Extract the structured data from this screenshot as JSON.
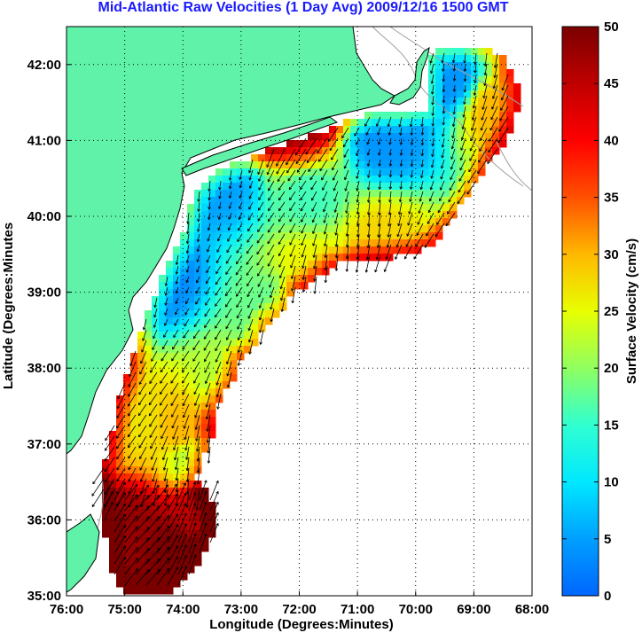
{
  "chart_data": {
    "type": "heatmap",
    "title": "Mid-Atlantic Raw Velocities (1 Day Avg) 2009/12/16 1500 GMT",
    "xlabel": "Longitude (Degrees:Minutes)",
    "ylabel": "Latitude (Degrees:Minutes",
    "xlim": [
      -76,
      -68
    ],
    "ylim": [
      35,
      42.5
    ],
    "x_ticks": [
      -76,
      -75,
      -74,
      -73,
      -72,
      -71,
      -70,
      -69,
      -68
    ],
    "x_tick_labels": [
      "76:00",
      "75:00",
      "74:00",
      "73:00",
      "72:00",
      "71:00",
      "70:00",
      "69:00",
      "68:00"
    ],
    "y_ticks": [
      35,
      36,
      37,
      38,
      39,
      40,
      41,
      42
    ],
    "y_tick_labels": [
      "35:00",
      "36:00",
      "37:00",
      "38:00",
      "39:00",
      "40:00",
      "41:00",
      "42:00"
    ],
    "grid": true,
    "colorbar": {
      "label": "Surface Velocity (cm/s)",
      "range": [
        0,
        50
      ],
      "ticks": [
        0,
        5,
        10,
        15,
        20,
        25,
        30,
        35,
        40,
        45,
        50
      ],
      "tick_labels": [
        "0",
        "5",
        "10",
        "15",
        "20",
        "25",
        "30",
        "35",
        "40",
        "45",
        "50"
      ]
    },
    "colors": {
      "land": "#5ff2a8",
      "coastline": "#000000",
      "bathymetry": "#a0a0a0",
      "vector": "#000000",
      "title": "#1a1aff"
    },
    "velocity_hotspots": [
      {
        "lon": -74.2,
        "lat": 35.6,
        "speed": 50
      },
      {
        "lon": -74.9,
        "lat": 35.9,
        "speed": 48
      },
      {
        "lon": -73.7,
        "lat": 36.1,
        "speed": 45
      },
      {
        "lon": -74.0,
        "lat": 37.2,
        "speed": 30
      },
      {
        "lon": -74.8,
        "lat": 37.3,
        "speed": 27
      },
      {
        "lon": -74.4,
        "lat": 39.2,
        "speed": 3
      },
      {
        "lon": -73.4,
        "lat": 40.4,
        "speed": 5
      },
      {
        "lon": -70.5,
        "lat": 41.0,
        "speed": 4
      },
      {
        "lon": -69.5,
        "lat": 41.8,
        "speed": 4
      },
      {
        "lon": -71.8,
        "lat": 40.3,
        "speed": 16
      },
      {
        "lon": -72.5,
        "lat": 38.8,
        "speed": 18
      },
      {
        "lon": -73.2,
        "lat": 37.8,
        "speed": 22
      },
      {
        "lon": -71.8,
        "lat": 39.3,
        "speed": 26
      },
      {
        "lon": -73.8,
        "lat": 36.8,
        "speed": 22
      },
      {
        "lon": -68.6,
        "lat": 41.4,
        "speed": 30
      },
      {
        "lon": -72.0,
        "lat": 41.0,
        "speed": 35
      },
      {
        "lon": -70.6,
        "lat": 39.7,
        "speed": 28
      }
    ],
    "mean_flow_direction_deg": 200
  }
}
